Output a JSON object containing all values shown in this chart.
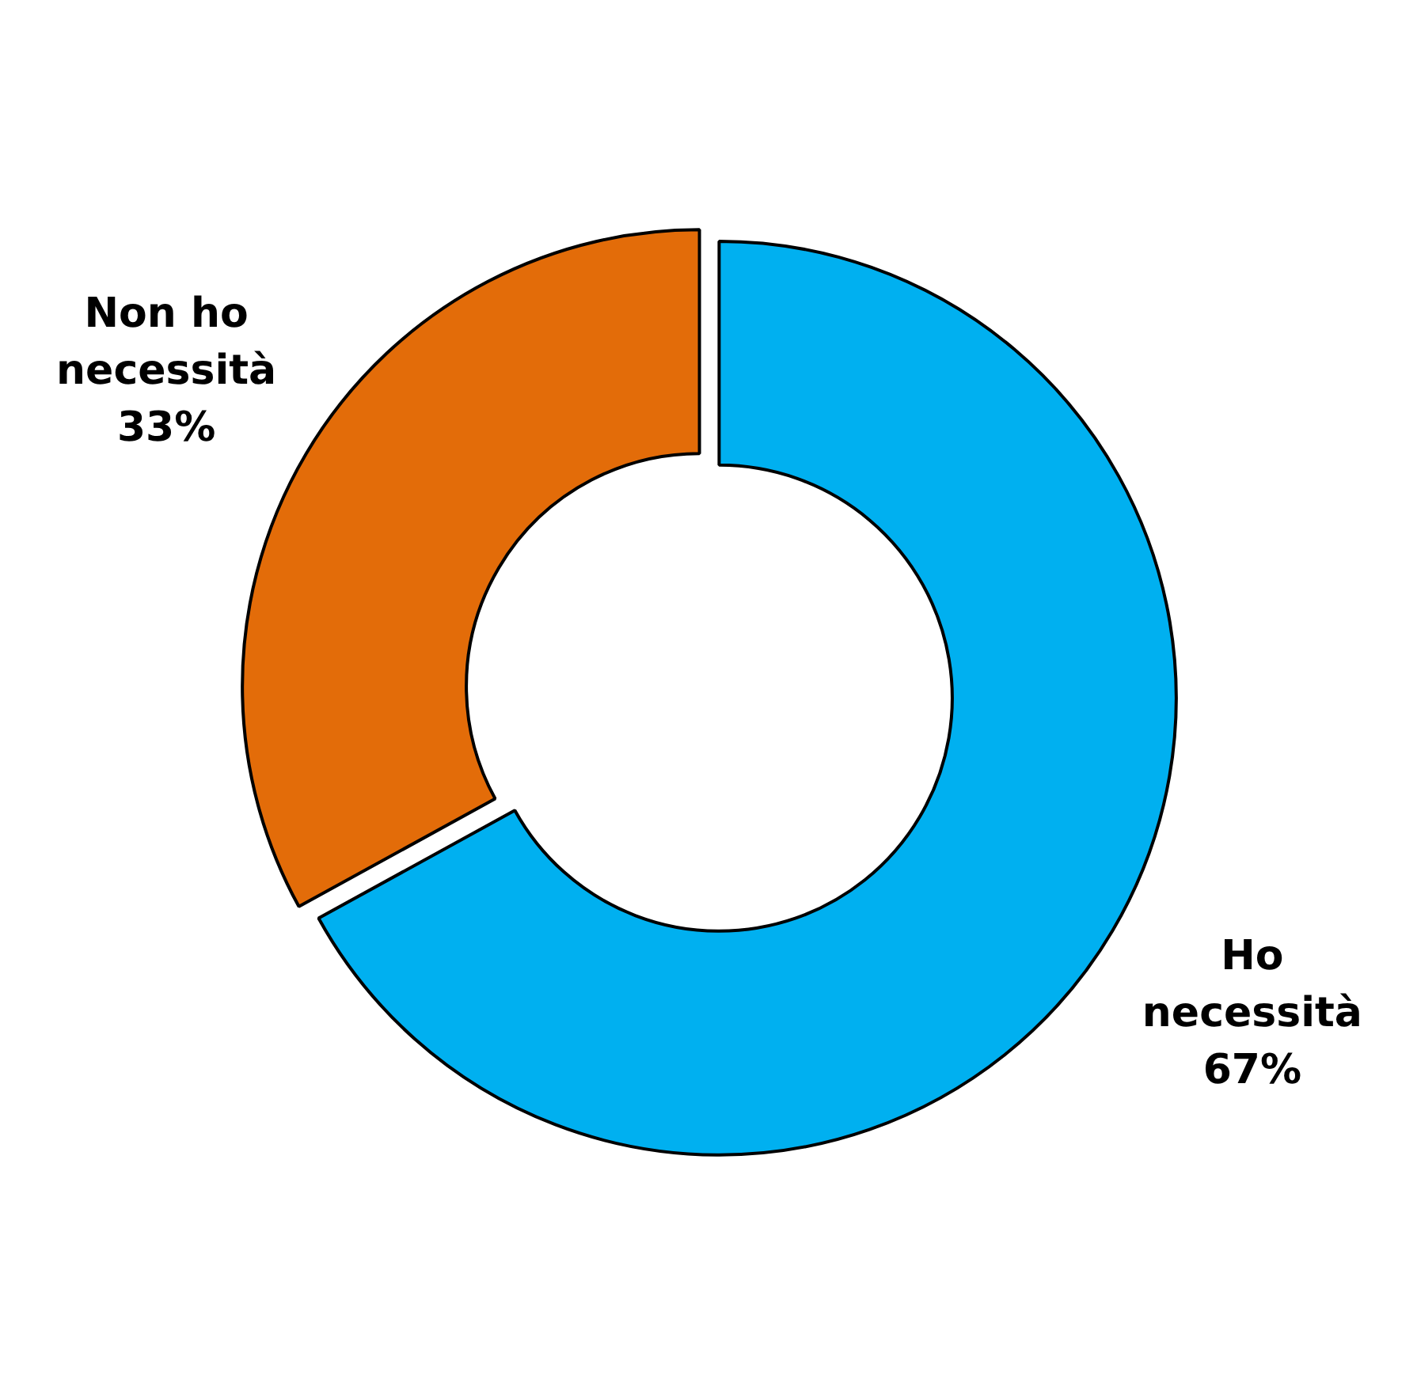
{
  "chart_data": {
    "type": "donut",
    "categories": [
      "Ho necessità",
      "Non ho necessità"
    ],
    "values": [
      67,
      33
    ],
    "colors": [
      "#00b0f0",
      "#e36c09"
    ],
    "value_labels": [
      "67%",
      "33%"
    ]
  }
}
